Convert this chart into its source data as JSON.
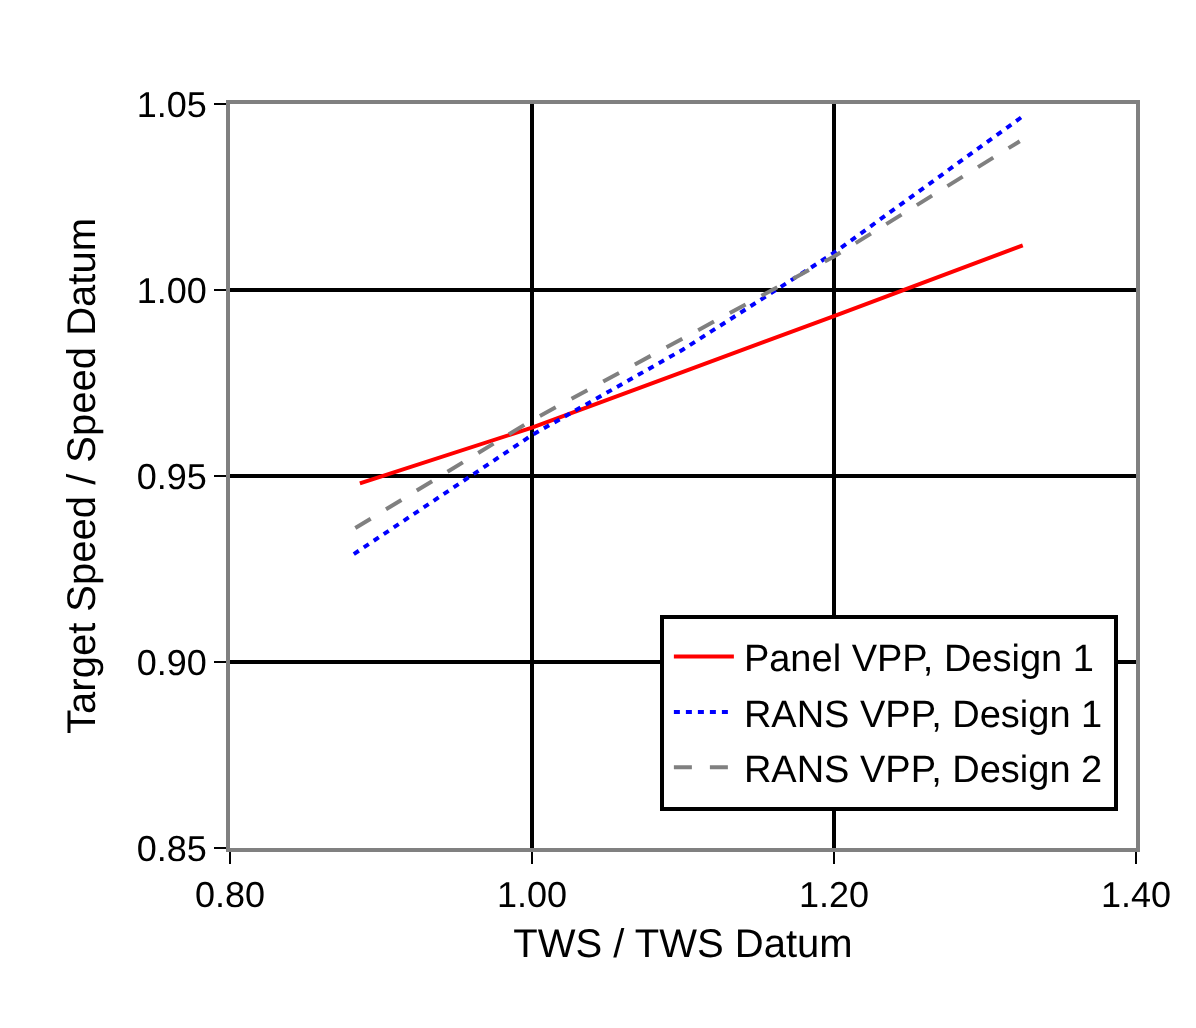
{
  "chart_data": {
    "type": "line",
    "xlabel": "TWS / TWS Datum",
    "ylabel": "Target Speed / Speed Datum",
    "xlim": [
      0.8,
      1.4
    ],
    "xticks": [
      {
        "value": 0.8,
        "label": "0.80"
      },
      {
        "value": 1.0,
        "label": "1.00"
      },
      {
        "value": 1.2,
        "label": "1.20"
      },
      {
        "value": 1.4,
        "label": "1.40"
      }
    ],
    "ylim": [
      0.85,
      1.05
    ],
    "yticks": [
      {
        "value": 0.85,
        "label": "0.85"
      },
      {
        "value": 0.9,
        "label": "0.90"
      },
      {
        "value": 0.95,
        "label": "0.95"
      },
      {
        "value": 1.0,
        "label": "1.00"
      },
      {
        "value": 1.05,
        "label": "1.05"
      }
    ],
    "grid": true,
    "legend": "bottom right",
    "series": [
      {
        "name": "Panel VPP, Design 1",
        "color": "#ff0000",
        "line_style": "solid",
        "x": [
          0.886,
          1.0,
          1.1,
          1.2,
          1.325
        ],
        "values": [
          0.948,
          0.963,
          0.978,
          0.993,
          1.012
        ]
      },
      {
        "name": "RANS VPP, Design 1",
        "color": "#0000ff",
        "line_style": "dotted",
        "x": [
          0.882,
          1.0,
          1.1,
          1.2,
          1.326
        ],
        "values": [
          0.929,
          0.961,
          0.984,
          1.01,
          1.047
        ]
      },
      {
        "name": "RANS VPP, Design 2",
        "color": "#808080",
        "line_style": "dashed",
        "x": [
          0.883,
          1.0,
          1.1,
          1.2,
          1.323
        ],
        "values": [
          0.936,
          0.965,
          0.987,
          1.009,
          1.04
        ]
      }
    ]
  }
}
